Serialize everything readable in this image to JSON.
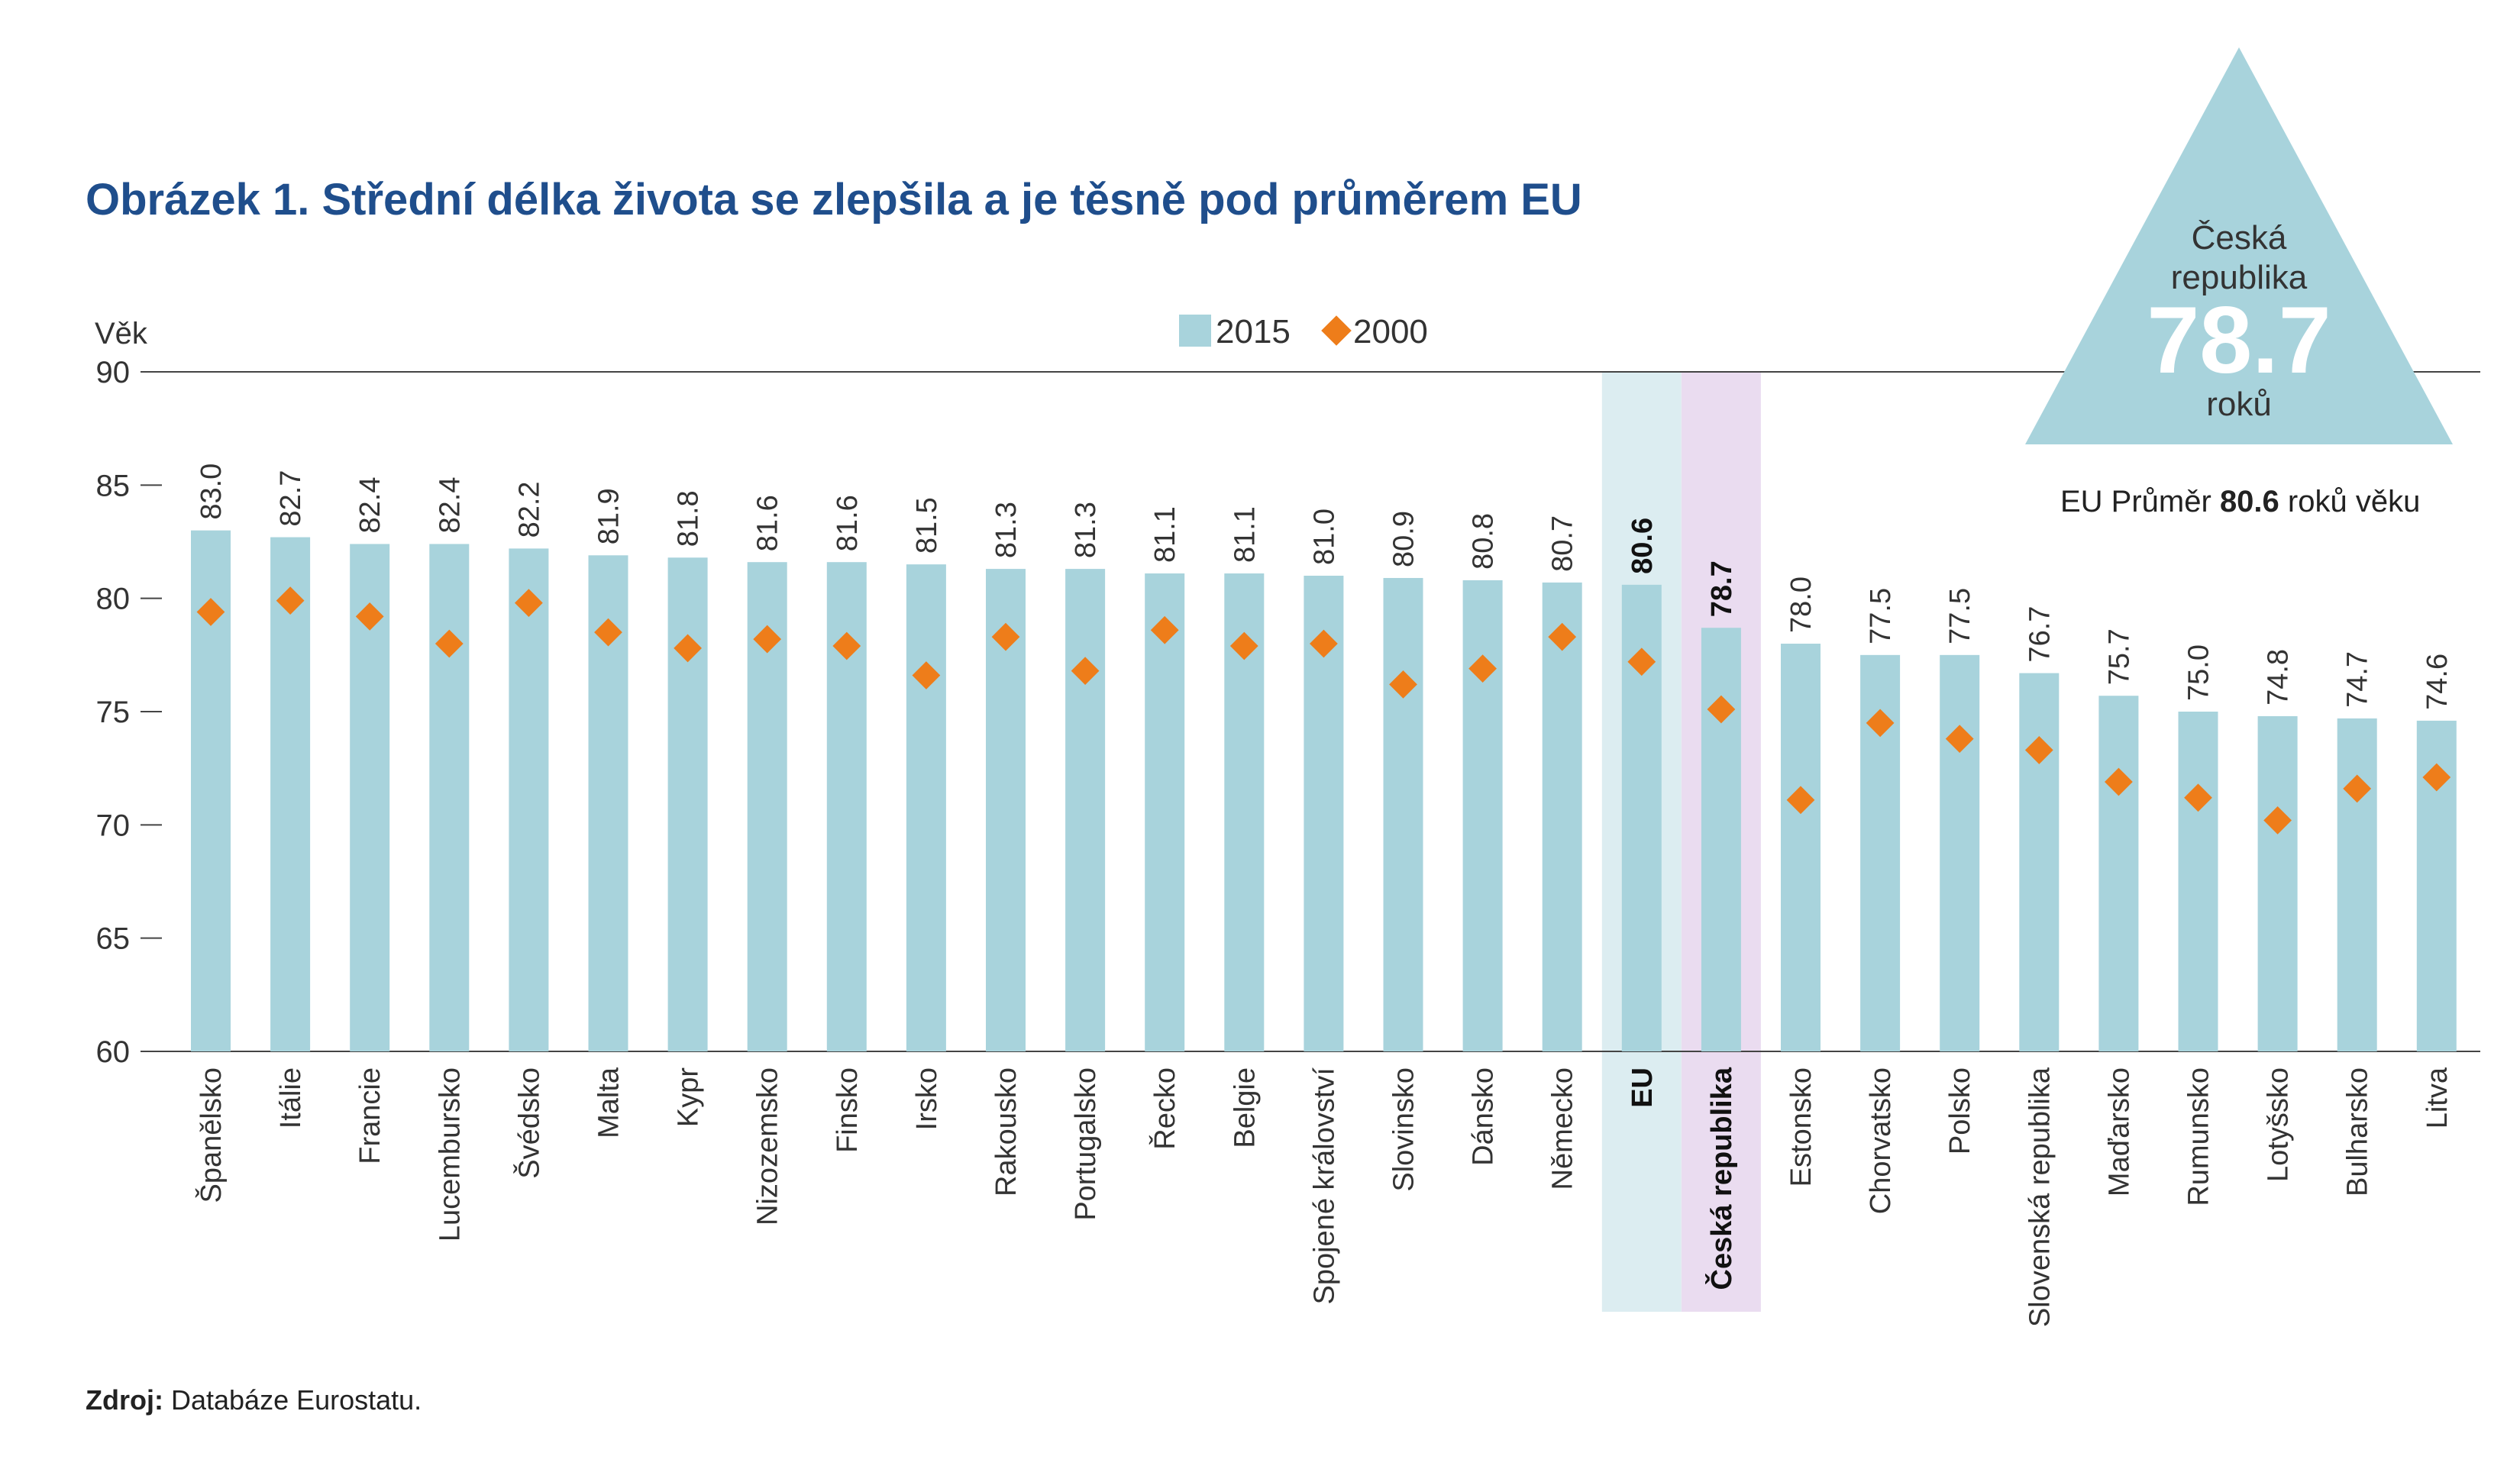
{
  "title": "Obrázek 1. Střední délka života se zlepšila a je těsně pod průměrem EU",
  "colors": {
    "bar": "#a8d3dc",
    "marker": "#ee7d1a",
    "eu_band": "#dcedf1",
    "cz_band": "#eadcf0",
    "title": "#1f4e8c",
    "triangle": "#a8d3dc"
  },
  "triangle": {
    "line1": "Česká",
    "line2": "republika",
    "value": "78.7",
    "unit": "roků"
  },
  "eu_average": {
    "prefix": "EU Průměr ",
    "value": "80.6",
    "suffix": " roků věku"
  },
  "source": {
    "label": "Zdroj:",
    "text": " Databáze Eurostatu."
  },
  "chart_data": {
    "type": "bar",
    "ylabel": "Věk",
    "ylim": [
      60,
      90
    ],
    "yticks": [
      60,
      65,
      70,
      75,
      80,
      85,
      90
    ],
    "categories": [
      "Španělsko",
      "Itálie",
      "Francie",
      "Lucembursko",
      "Švédsko",
      "Malta",
      "Kypr",
      "Nizozemsko",
      "Finsko",
      "Irsko",
      "Rakousko",
      "Portugalsko",
      "Řecko",
      "Belgie",
      "Spojené království",
      "Slovinsko",
      "Dánsko",
      "Německo",
      "EU",
      "Česká republika",
      "Estonsko",
      "Chorvatsko",
      "Polsko",
      "Slovenská republika",
      "Maďarsko",
      "Rumunsko",
      "Lotyšsko",
      "Bulharsko",
      "Litva"
    ],
    "value_labels": [
      "83.0",
      "82.7",
      "82.4",
      "82.4",
      "82.2",
      "81.9",
      "81.8",
      "81.6",
      "81.6",
      "81.5",
      "81.3",
      "81.3",
      "81.1",
      "81.1",
      "81.0",
      "80.9",
      "80.8",
      "80.7",
      "80.6",
      "78.7",
      "78.0",
      "77.5",
      "77.5",
      "76.7",
      "75.7",
      "75.0",
      "74.8",
      "74.7",
      "74.6"
    ],
    "highlight": [
      "EU",
      "Česká republika"
    ],
    "series": [
      {
        "name": "2015",
        "type": "bar",
        "values": [
          83.0,
          82.7,
          82.4,
          82.4,
          82.2,
          81.9,
          81.8,
          81.6,
          81.6,
          81.5,
          81.3,
          81.3,
          81.1,
          81.1,
          81.0,
          80.9,
          80.8,
          80.7,
          80.6,
          78.7,
          78.0,
          77.5,
          77.5,
          76.7,
          75.7,
          75.0,
          74.8,
          74.7,
          74.6
        ]
      },
      {
        "name": "2000",
        "type": "scatter",
        "marker": "diamond",
        "values": [
          79.4,
          79.9,
          79.2,
          78.0,
          79.8,
          78.5,
          77.8,
          78.2,
          77.9,
          76.6,
          78.3,
          76.8,
          78.6,
          77.9,
          78.0,
          76.2,
          76.9,
          78.3,
          77.2,
          75.1,
          71.1,
          74.5,
          73.8,
          73.3,
          71.9,
          71.2,
          70.2,
          71.6,
          72.1
        ]
      }
    ],
    "legend": {
      "position": "top-center"
    },
    "grid": false
  }
}
